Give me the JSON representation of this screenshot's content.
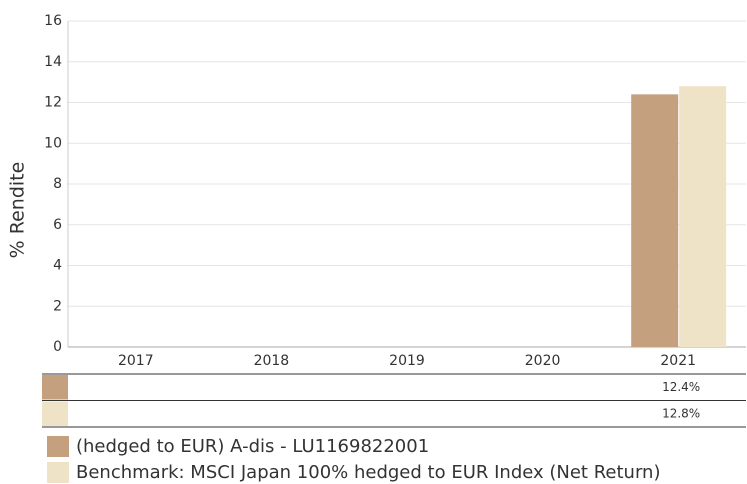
{
  "chart_data": {
    "type": "bar",
    "y_label": "% Rendite",
    "categories": [
      "2017",
      "2018",
      "2019",
      "2020",
      "2021"
    ],
    "series": [
      {
        "name": "(hedged to EUR) A-dis - LU1169822001",
        "color": "#c4a07e",
        "values": [
          null,
          null,
          null,
          null,
          12.4
        ],
        "value_labels": [
          null,
          null,
          null,
          null,
          "12.4%"
        ]
      },
      {
        "name": "Benchmark: MSCI Japan 100% hedged to EUR Index (Net Return)",
        "color": "#efe3c7",
        "values": [
          null,
          null,
          null,
          null,
          12.8
        ],
        "value_labels": [
          null,
          null,
          null,
          null,
          "12.8%"
        ]
      }
    ],
    "ylim": [
      0,
      16
    ],
    "yticks": [
      0,
      2,
      4,
      6,
      8,
      10,
      12,
      14,
      16
    ],
    "grid": true
  }
}
